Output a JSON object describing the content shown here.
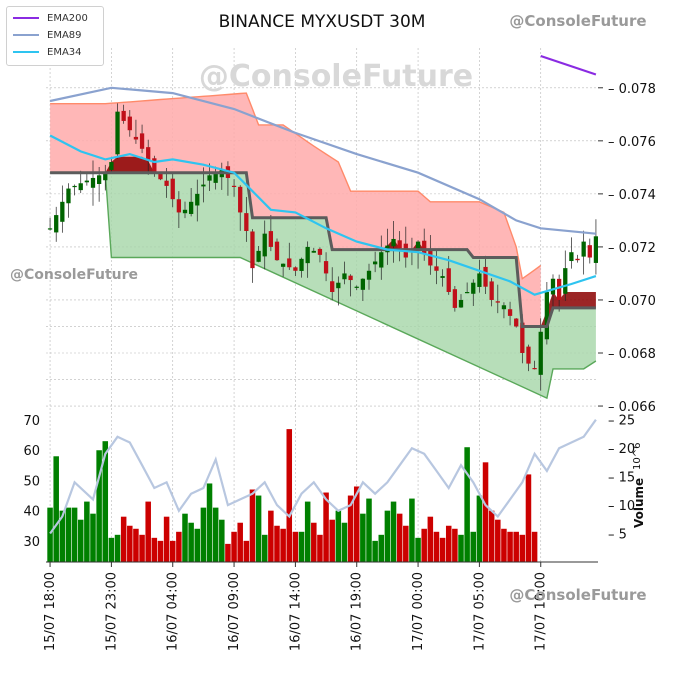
{
  "header": {
    "title": "BINANCE MYXUSDT 30M"
  },
  "watermarks": {
    "top_right": "@ConsoleFuture",
    "center": "@ConsoleFuture",
    "left": "@ConsoleFuture",
    "bottom_right": "@ConsoleFuture"
  },
  "legend": [
    {
      "name": "EMA200",
      "color": "#8a2be2"
    },
    {
      "name": "EMA89",
      "color": "#8aa2cf"
    },
    {
      "name": "EMA34",
      "color": "#2ec4f0"
    }
  ],
  "colors": {
    "up": "#006400",
    "down": "#c0101a",
    "cloud_red": "#ffaaaa",
    "cloud_green": "#a5d6a7",
    "band_dark": "#8b0000",
    "volume_up": "#008000",
    "volume_down": "#cc0000",
    "secondary_line": "#b8c7e0"
  },
  "chart_data": {
    "type": "candlestick",
    "title": "BINANCE MYXUSDT 30M",
    "price_axis": {
      "ticks": [
        0.066,
        0.068,
        0.07,
        0.072,
        0.074,
        0.076,
        0.078
      ],
      "range": [
        0.0657,
        0.0795
      ],
      "side": "right"
    },
    "volume_axis": {
      "label": "Volume",
      "exponent": "10^6",
      "ticks": [
        5,
        10,
        15,
        20,
        25
      ],
      "range": [
        0,
        26
      ],
      "side": "right"
    },
    "left_axis": {
      "ticks": [
        30,
        40,
        50,
        60,
        70
      ],
      "range": [
        23,
        72
      ]
    },
    "x_ticks": [
      "15/07 18:00",
      "15/07 23:00",
      "16/07 04:00",
      "16/07 09:00",
      "16/07 14:00",
      "16/07 19:00",
      "17/07 00:00",
      "17/07 05:00",
      "17/07 10:00"
    ],
    "x_tick_index": [
      0,
      10,
      20,
      30,
      40,
      50,
      60,
      70,
      80
    ],
    "candle_count": 90,
    "key_closes": [
      [
        0,
        0.0727
      ],
      [
        3,
        0.0742
      ],
      [
        6,
        0.0745
      ],
      [
        9,
        0.0748
      ],
      [
        10,
        0.0752
      ],
      [
        11,
        0.0771
      ],
      [
        13,
        0.0764
      ],
      [
        15,
        0.0757
      ],
      [
        17,
        0.0748
      ],
      [
        19,
        0.0743
      ],
      [
        21,
        0.0733
      ],
      [
        22,
        0.0734
      ],
      [
        24,
        0.074
      ],
      [
        26,
        0.0747
      ],
      [
        28,
        0.0749
      ],
      [
        30,
        0.0743
      ],
      [
        31,
        0.0733
      ],
      [
        32,
        0.0726
      ],
      [
        33,
        0.0712
      ],
      [
        35,
        0.0725
      ],
      [
        37,
        0.0715
      ],
      [
        40,
        0.0711
      ],
      [
        42,
        0.072
      ],
      [
        44,
        0.0717
      ],
      [
        46,
        0.0703
      ],
      [
        48,
        0.071
      ],
      [
        50,
        0.0705
      ],
      [
        52,
        0.0711
      ],
      [
        54,
        0.0718
      ],
      [
        56,
        0.0723
      ],
      [
        58,
        0.0716
      ],
      [
        60,
        0.0722
      ],
      [
        62,
        0.0713
      ],
      [
        64,
        0.0709
      ],
      [
        66,
        0.0697
      ],
      [
        68,
        0.0703
      ],
      [
        70,
        0.071
      ],
      [
        72,
        0.07
      ],
      [
        74,
        0.0698
      ],
      [
        76,
        0.069
      ],
      [
        77,
        0.068
      ],
      [
        78,
        0.0676
      ],
      [
        79,
        0.0674
      ],
      [
        80,
        0.0688
      ],
      [
        81,
        0.0703
      ],
      [
        82,
        0.0708
      ],
      [
        83,
        0.07
      ],
      [
        84,
        0.0712
      ],
      [
        85,
        0.0718
      ],
      [
        86,
        0.0715
      ],
      [
        87,
        0.0722
      ],
      [
        88,
        0.0716
      ],
      [
        89,
        0.0724
      ]
    ],
    "ema200": [
      [
        80,
        0.0792
      ],
      [
        89,
        0.0785
      ]
    ],
    "ema89": [
      [
        0,
        0.0775
      ],
      [
        10,
        0.078
      ],
      [
        20,
        0.0778
      ],
      [
        30,
        0.0772
      ],
      [
        40,
        0.0763
      ],
      [
        50,
        0.0755
      ],
      [
        60,
        0.0748
      ],
      [
        70,
        0.0738
      ],
      [
        76,
        0.073
      ],
      [
        80,
        0.0727
      ],
      [
        89,
        0.0725
      ]
    ],
    "ema34": [
      [
        0,
        0.0762
      ],
      [
        5,
        0.0756
      ],
      [
        9,
        0.0753
      ],
      [
        13,
        0.0755
      ],
      [
        17,
        0.0752
      ],
      [
        20,
        0.0753
      ],
      [
        25,
        0.0751
      ],
      [
        30,
        0.0748
      ],
      [
        33,
        0.0741
      ],
      [
        36,
        0.0734
      ],
      [
        40,
        0.0733
      ],
      [
        45,
        0.0727
      ],
      [
        50,
        0.0722
      ],
      [
        55,
        0.0719
      ],
      [
        60,
        0.0718
      ],
      [
        65,
        0.0715
      ],
      [
        70,
        0.0711
      ],
      [
        75,
        0.0707
      ],
      [
        79,
        0.0702
      ],
      [
        82,
        0.0704
      ],
      [
        85,
        0.0706
      ],
      [
        89,
        0.0709
      ]
    ],
    "baseline": [
      [
        0,
        0.0748
      ],
      [
        32,
        0.0748
      ],
      [
        33,
        0.0731
      ],
      [
        45,
        0.0731
      ],
      [
        46,
        0.0719
      ],
      [
        68,
        0.0719
      ],
      [
        69,
        0.0716
      ],
      [
        76,
        0.0716
      ],
      [
        77,
        0.069
      ],
      [
        81,
        0.069
      ],
      [
        82,
        0.0697
      ],
      [
        89,
        0.0697
      ]
    ],
    "cloud_red": [
      [
        0,
        0.0774
      ],
      [
        9,
        0.0774
      ],
      [
        32,
        0.0778
      ],
      [
        34,
        0.0766
      ],
      [
        38,
        0.0766
      ],
      [
        43,
        0.0758
      ],
      [
        47,
        0.0752
      ],
      [
        49,
        0.0741
      ],
      [
        60,
        0.0741
      ],
      [
        62,
        0.0737
      ],
      [
        70,
        0.0737
      ],
      [
        74,
        0.0733
      ],
      [
        76,
        0.072
      ],
      [
        77,
        0.0708
      ],
      [
        80,
        0.0713
      ]
    ],
    "cloud_green": [
      [
        0,
        0.0748
      ],
      [
        9,
        0.0748
      ],
      [
        10,
        0.0716
      ],
      [
        31,
        0.0716
      ],
      [
        81,
        0.0663
      ],
      [
        82,
        0.0674
      ],
      [
        87,
        0.0674
      ],
      [
        89,
        0.0677
      ]
    ],
    "volume_left_scale": [
      [
        0,
        41
      ],
      [
        1,
        58
      ],
      [
        2,
        40
      ],
      [
        3,
        41
      ],
      [
        4,
        41
      ],
      [
        5,
        37
      ],
      [
        6,
        43
      ],
      [
        7,
        39
      ],
      [
        8,
        60
      ],
      [
        9,
        63
      ],
      [
        10,
        31
      ],
      [
        11,
        32
      ],
      [
        12,
        38
      ],
      [
        13,
        35
      ],
      [
        14,
        34
      ],
      [
        15,
        32
      ],
      [
        16,
        43
      ],
      [
        17,
        31
      ],
      [
        18,
        30
      ],
      [
        19,
        38
      ],
      [
        20,
        30
      ],
      [
        21,
        33
      ],
      [
        22,
        39
      ],
      [
        23,
        36
      ],
      [
        24,
        34
      ],
      [
        25,
        41
      ],
      [
        26,
        49
      ],
      [
        27,
        41
      ],
      [
        28,
        37
      ],
      [
        29,
        29
      ],
      [
        30,
        33
      ],
      [
        31,
        36
      ],
      [
        32,
        30
      ],
      [
        33,
        47
      ],
      [
        34,
        45
      ],
      [
        35,
        32
      ],
      [
        36,
        40
      ],
      [
        37,
        35
      ],
      [
        38,
        34
      ],
      [
        39,
        67
      ],
      [
        40,
        33
      ],
      [
        41,
        33
      ],
      [
        42,
        43
      ],
      [
        43,
        36
      ],
      [
        44,
        32
      ],
      [
        45,
        46
      ],
      [
        46,
        37
      ],
      [
        47,
        40
      ],
      [
        48,
        36
      ],
      [
        49,
        45
      ],
      [
        50,
        48
      ],
      [
        51,
        39
      ],
      [
        52,
        44
      ],
      [
        53,
        30
      ],
      [
        54,
        32
      ],
      [
        55,
        40
      ],
      [
        56,
        43
      ],
      [
        57,
        39
      ],
      [
        58,
        35
      ],
      [
        59,
        44
      ],
      [
        60,
        31
      ],
      [
        61,
        34
      ],
      [
        62,
        38
      ],
      [
        63,
        33
      ],
      [
        64,
        31
      ],
      [
        65,
        35
      ],
      [
        66,
        34
      ],
      [
        67,
        32
      ],
      [
        68,
        61
      ],
      [
        69,
        33
      ],
      [
        70,
        45
      ],
      [
        71,
        56
      ],
      [
        72,
        40
      ],
      [
        73,
        37
      ],
      [
        74,
        34
      ],
      [
        75,
        33
      ],
      [
        76,
        33
      ],
      [
        77,
        32
      ],
      [
        78,
        52
      ],
      [
        79,
        33
      ]
    ],
    "volume_line": [
      [
        0,
        5
      ],
      [
        2,
        8
      ],
      [
        4,
        14
      ],
      [
        7,
        11
      ],
      [
        9,
        19
      ],
      [
        11,
        22
      ],
      [
        13,
        21
      ],
      [
        15,
        17
      ],
      [
        17,
        13
      ],
      [
        19,
        14
      ],
      [
        21,
        9
      ],
      [
        23,
        12
      ],
      [
        25,
        13
      ],
      [
        27,
        18
      ],
      [
        29,
        10
      ],
      [
        31,
        11
      ],
      [
        33,
        12
      ],
      [
        35,
        14
      ],
      [
        37,
        10
      ],
      [
        39,
        8
      ],
      [
        41,
        12
      ],
      [
        43,
        14
      ],
      [
        45,
        11
      ],
      [
        47,
        9
      ],
      [
        49,
        10
      ],
      [
        51,
        14
      ],
      [
        53,
        12
      ],
      [
        55,
        14
      ],
      [
        57,
        17
      ],
      [
        59,
        20
      ],
      [
        61,
        19
      ],
      [
        63,
        16
      ],
      [
        65,
        13
      ],
      [
        67,
        17
      ],
      [
        69,
        14
      ],
      [
        71,
        10
      ],
      [
        73,
        8
      ],
      [
        75,
        11
      ],
      [
        77,
        14
      ],
      [
        79,
        19
      ],
      [
        81,
        16
      ],
      [
        83,
        20
      ],
      [
        85,
        21
      ],
      [
        87,
        22
      ],
      [
        89,
        25
      ]
    ]
  }
}
